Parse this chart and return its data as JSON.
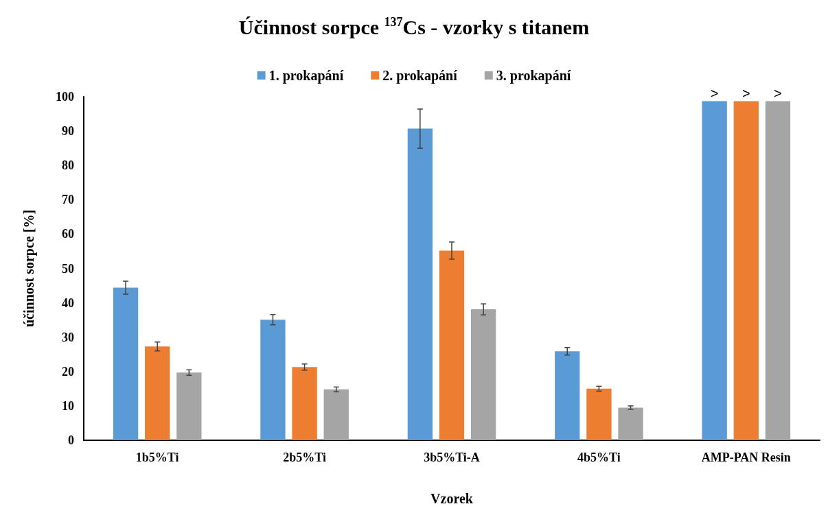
{
  "chart_data": {
    "type": "bar",
    "title": "Účinnost sorpce $^{137}$Cs - vzorky s titanem",
    "xlabel": "Vzorek",
    "ylabel": "účinnost sorpce [%]",
    "categories": [
      "1b5%Ti",
      "2b5%Ti",
      "3b5%Ti-A",
      "4b5%Ti",
      "AMP-PAN Resin"
    ],
    "series": [
      {
        "name": "1. prokapání",
        "color": "#5b9bd5",
        "values": [
          44.4,
          35.1,
          90.7,
          25.9,
          98.7
        ],
        "errors": [
          1.9,
          1.5,
          5.7,
          1.1,
          null
        ],
        "value_labels": [
          null,
          null,
          null,
          null,
          ">"
        ]
      },
      {
        "name": "2. prokapání",
        "color": "#ed7d31",
        "values": [
          27.3,
          21.3,
          55.2,
          15.0,
          98.7
        ],
        "errors": [
          1.3,
          0.9,
          2.5,
          0.7,
          null
        ],
        "value_labels": [
          null,
          null,
          null,
          null,
          ">"
        ]
      },
      {
        "name": "3. prokapání",
        "color": "#a5a5a5",
        "values": [
          19.7,
          14.8,
          38.1,
          9.5,
          98.7
        ],
        "errors": [
          0.8,
          0.7,
          1.6,
          0.5,
          null
        ],
        "value_labels": [
          null,
          null,
          null,
          null,
          ">"
        ]
      }
    ],
    "ylim": [
      0,
      100
    ],
    "yticks": [
      0,
      10,
      20,
      30,
      40,
      50,
      60,
      70,
      80,
      90,
      100
    ],
    "grid": false,
    "legend": "top"
  }
}
